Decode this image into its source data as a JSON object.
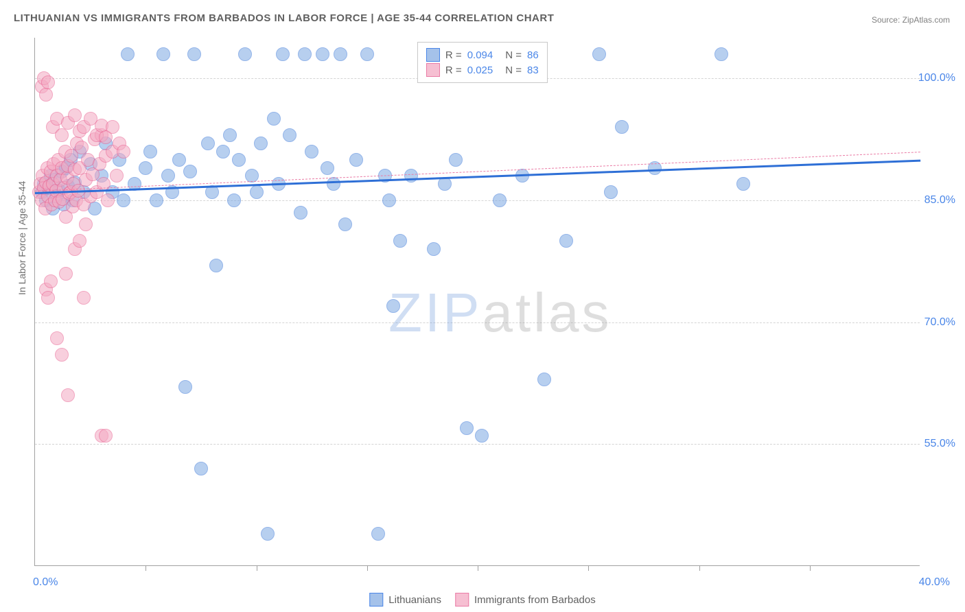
{
  "title": "LITHUANIAN VS IMMIGRANTS FROM BARBADOS IN LABOR FORCE | AGE 35-44 CORRELATION CHART",
  "source_label": "Source: ZipAtlas.com",
  "ylabel": "In Labor Force | Age 35-44",
  "watermark_a": "ZIP",
  "watermark_b": "atlas",
  "chart": {
    "type": "scatter",
    "background_color": "#ffffff",
    "grid_color": "#d4d4d4",
    "axis_color": "#a0a0a0",
    "xlim": [
      0,
      40
    ],
    "ylim": [
      40,
      105
    ],
    "ytick_values": [
      55,
      70,
      85,
      100
    ],
    "ytick_labels": [
      "55.0%",
      "70.0%",
      "85.0%",
      "100.0%"
    ],
    "xtick_values": [
      0,
      40
    ],
    "xtick_labels": [
      "0.0%",
      "40.0%"
    ],
    "xtick_minor": [
      5,
      10,
      15,
      20,
      25,
      30,
      35
    ],
    "label_color": "#4a86e8",
    "label_fontsize": 16,
    "marker_radius": 10,
    "marker_opacity": 0.55,
    "series": [
      {
        "name": "Lithuanians",
        "color_fill": "#7ea9e3",
        "color_stroke": "#3b78d8",
        "legend_fill": "#a5c2ea",
        "legend_stroke": "#4a86e8",
        "R": "0.094",
        "N": "86",
        "trend": {
          "x1": 0,
          "y1": 86.0,
          "x2": 40,
          "y2": 90.0,
          "style": "solid",
          "color": "#2e6fd6",
          "width": 2.5
        },
        "points": [
          [
            0.3,
            86
          ],
          [
            0.4,
            87
          ],
          [
            0.5,
            85
          ],
          [
            0.6,
            86.5
          ],
          [
            0.7,
            88
          ],
          [
            0.8,
            84
          ],
          [
            0.9,
            87.5
          ],
          [
            1.0,
            85.5
          ],
          [
            1.1,
            86.2
          ],
          [
            1.2,
            88.5
          ],
          [
            1.3,
            84.5
          ],
          [
            1.4,
            89
          ],
          [
            1.5,
            86.8
          ],
          [
            1.6,
            90
          ],
          [
            1.7,
            85
          ],
          [
            1.8,
            87.2
          ],
          [
            2.0,
            91
          ],
          [
            2.2,
            86
          ],
          [
            2.5,
            89.5
          ],
          [
            2.7,
            84
          ],
          [
            3.0,
            88
          ],
          [
            3.2,
            92
          ],
          [
            3.5,
            86
          ],
          [
            3.8,
            90
          ],
          [
            4.0,
            85
          ],
          [
            4.2,
            103
          ],
          [
            4.5,
            87
          ],
          [
            5.0,
            89
          ],
          [
            5.2,
            91
          ],
          [
            5.5,
            85
          ],
          [
            5.8,
            103
          ],
          [
            6.0,
            88
          ],
          [
            6.2,
            86
          ],
          [
            6.5,
            90
          ],
          [
            6.8,
            62
          ],
          [
            7.0,
            88.5
          ],
          [
            7.2,
            103
          ],
          [
            7.5,
            52
          ],
          [
            7.8,
            92
          ],
          [
            8.0,
            86
          ],
          [
            8.2,
            77
          ],
          [
            8.5,
            91
          ],
          [
            8.8,
            93
          ],
          [
            9.0,
            85
          ],
          [
            9.2,
            90
          ],
          [
            9.5,
            103
          ],
          [
            9.8,
            88
          ],
          [
            10.0,
            86
          ],
          [
            10.2,
            92
          ],
          [
            10.5,
            44
          ],
          [
            10.8,
            95
          ],
          [
            11.0,
            87
          ],
          [
            11.2,
            103
          ],
          [
            11.5,
            93
          ],
          [
            12.0,
            83.5
          ],
          [
            12.2,
            103
          ],
          [
            12.5,
            91
          ],
          [
            13.0,
            103
          ],
          [
            13.2,
            89
          ],
          [
            13.5,
            87
          ],
          [
            13.8,
            103
          ],
          [
            14.0,
            82
          ],
          [
            14.5,
            90
          ],
          [
            15.0,
            103
          ],
          [
            15.5,
            44
          ],
          [
            15.8,
            88
          ],
          [
            16.0,
            85
          ],
          [
            16.2,
            72
          ],
          [
            16.5,
            80
          ],
          [
            17.0,
            88
          ],
          [
            18.0,
            79
          ],
          [
            18.5,
            87
          ],
          [
            19.0,
            90
          ],
          [
            19.5,
            57
          ],
          [
            20.0,
            103
          ],
          [
            20.2,
            56
          ],
          [
            21.0,
            85
          ],
          [
            22.0,
            88
          ],
          [
            23.0,
            63
          ],
          [
            24.0,
            80
          ],
          [
            25.5,
            103
          ],
          [
            26.0,
            86
          ],
          [
            26.5,
            94
          ],
          [
            28.0,
            89
          ],
          [
            31.0,
            103
          ],
          [
            32.0,
            87
          ]
        ]
      },
      {
        "name": "Immigrants from Barbados",
        "color_fill": "#f4a9c2",
        "color_stroke": "#e85f8f",
        "legend_fill": "#f6bfd2",
        "legend_stroke": "#ea7ba5",
        "R": "0.025",
        "N": "83",
        "trend": {
          "x1": 0,
          "y1": 86.2,
          "x2": 40,
          "y2": 91.0,
          "style": "dashed",
          "color": "#ea7ba5",
          "width": 1.5
        },
        "points": [
          [
            0.2,
            86
          ],
          [
            0.25,
            87
          ],
          [
            0.3,
            85
          ],
          [
            0.35,
            88
          ],
          [
            0.4,
            86.5
          ],
          [
            0.45,
            84
          ],
          [
            0.5,
            87.2
          ],
          [
            0.55,
            89
          ],
          [
            0.6,
            85.5
          ],
          [
            0.65,
            86.8
          ],
          [
            0.7,
            88.5
          ],
          [
            0.75,
            84.5
          ],
          [
            0.8,
            87
          ],
          [
            0.85,
            89.5
          ],
          [
            0.9,
            85
          ],
          [
            0.95,
            86.2
          ],
          [
            1.0,
            88
          ],
          [
            1.05,
            90
          ],
          [
            1.1,
            84.8
          ],
          [
            1.15,
            87.5
          ],
          [
            1.2,
            89
          ],
          [
            1.25,
            85.2
          ],
          [
            1.3,
            86.5
          ],
          [
            1.35,
            91
          ],
          [
            1.4,
            83
          ],
          [
            1.45,
            87.8
          ],
          [
            1.5,
            89.2
          ],
          [
            1.55,
            85.8
          ],
          [
            1.6,
            86
          ],
          [
            1.65,
            90.5
          ],
          [
            1.7,
            84.2
          ],
          [
            1.75,
            87
          ],
          [
            1.8,
            88.8
          ],
          [
            1.85,
            85
          ],
          [
            1.9,
            92
          ],
          [
            1.95,
            86.2
          ],
          [
            2.0,
            89
          ],
          [
            2.1,
            91.5
          ],
          [
            2.2,
            84.5
          ],
          [
            2.3,
            87.5
          ],
          [
            2.4,
            90
          ],
          [
            2.5,
            85.5
          ],
          [
            2.6,
            88.2
          ],
          [
            2.7,
            92.5
          ],
          [
            2.8,
            86
          ],
          [
            2.9,
            89.5
          ],
          [
            3.0,
            93
          ],
          [
            3.1,
            87
          ],
          [
            3.2,
            90.5
          ],
          [
            3.3,
            85
          ],
          [
            3.5,
            91
          ],
          [
            3.7,
            88
          ],
          [
            0.3,
            99
          ],
          [
            0.4,
            100
          ],
          [
            0.5,
            98
          ],
          [
            0.6,
            99.5
          ],
          [
            0.5,
            74
          ],
          [
            0.6,
            73
          ],
          [
            0.7,
            75
          ],
          [
            1.0,
            68
          ],
          [
            1.2,
            66
          ],
          [
            1.4,
            76
          ],
          [
            1.5,
            61
          ],
          [
            1.8,
            79
          ],
          [
            2.0,
            80
          ],
          [
            2.2,
            73
          ],
          [
            2.3,
            82
          ],
          [
            3.0,
            56
          ],
          [
            3.2,
            56
          ],
          [
            0.8,
            94
          ],
          [
            1.0,
            95
          ],
          [
            1.2,
            93
          ],
          [
            1.5,
            94.5
          ],
          [
            1.8,
            95.5
          ],
          [
            2.0,
            93.5
          ],
          [
            2.2,
            94
          ],
          [
            2.5,
            95
          ],
          [
            2.8,
            93
          ],
          [
            3.0,
            94.2
          ],
          [
            3.2,
            92.8
          ],
          [
            3.5,
            94
          ],
          [
            3.8,
            92
          ],
          [
            4.0,
            91
          ]
        ]
      }
    ]
  },
  "legend_top": {
    "r_label": "R =",
    "n_label": "N ="
  },
  "legend_bottom": {
    "items": [
      "Lithuanians",
      "Immigrants from Barbados"
    ]
  }
}
